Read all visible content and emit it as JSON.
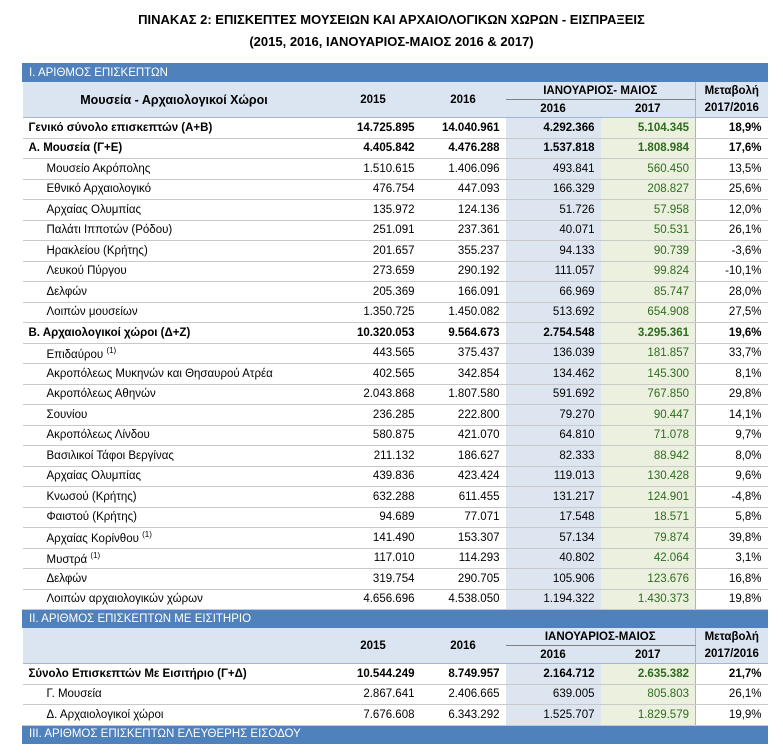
{
  "title": "ΠΙΝΑΚΑΣ 2: ΕΠΙΣΚΕΠΤΕΣ ΜΟΥΣΕΙΩΝ ΚΑΙ ΑΡΧΑΙΟΛΟΓΙΚΩΝ ΧΩΡΩΝ - ΕΙΣΠΡΑΞΕΙΣ",
  "subtitle": "(2015, 2016, ΙΑΝΟΥΑΡΙΟΣ-ΜΑΙΟΣ 2016 & 2017)",
  "sections": [
    {
      "heading": "Ι. ΑΡΙΘΜΟΣ  ΕΠΙΣΚΕΠΤΩΝ",
      "columns": {
        "name": "Μουσεία - Αρχαιολογικοί Χώροι",
        "y2015": "2015",
        "y2016": "2016",
        "period": "ΙΑΝΟΥΑΡΙΟΣ- ΜΑΙΟΣ",
        "p2016": "2016",
        "p2017": "2017",
        "change": "Μεταβολή 2017/2016"
      },
      "rows": [
        {
          "label": "Γενικό  σύνολο επισκεπτών (Α+Β)",
          "cells": [
            "14.725.895",
            "14.040.961",
            "4.292.366",
            "5.104.345",
            "18,9%"
          ],
          "bold": true
        },
        {
          "label": "Α. Μουσεία (Γ+Ε)",
          "cells": [
            "4.405.842",
            "4.476.288",
            "1.537.818",
            "1.808.984",
            "17,6%"
          ],
          "bold": true
        },
        {
          "label": "Μουσείο Ακρόπολης",
          "cells": [
            "1.510.615",
            "1.406.096",
            "493.841",
            "560.450",
            "13,5%"
          ]
        },
        {
          "label": "Εθνικό Αρχαιολογικό",
          "cells": [
            "476.754",
            "447.093",
            "166.329",
            "208.827",
            "25,6%"
          ]
        },
        {
          "label": "Αρχαίας Ολυμπίας",
          "cells": [
            "135.972",
            "124.136",
            "51.726",
            "57.958",
            "12,0%"
          ]
        },
        {
          "label": "Παλάτι Ιπποτών (Ρόδου)",
          "cells": [
            "251.091",
            "237.361",
            "40.071",
            "50.531",
            "26,1%"
          ]
        },
        {
          "label": "Ηρακλείου (Κρήτης)",
          "cells": [
            "201.657",
            "355.237",
            "94.133",
            "90.739",
            "-3,6%"
          ]
        },
        {
          "label": "Λευκού Πύργου",
          "cells": [
            "273.659",
            "290.192",
            "111.057",
            "99.824",
            "-10,1%"
          ]
        },
        {
          "label": "Δελφών",
          "cells": [
            "205.369",
            "166.091",
            "66.969",
            "85.747",
            "28,0%"
          ]
        },
        {
          "label": "Λοιπών μουσείων",
          "cells": [
            "1.350.725",
            "1.450.082",
            "513.692",
            "654.908",
            "27,5%"
          ]
        },
        {
          "label": "Β. Αρχαιολογικοί χώροι (Δ+Ζ)",
          "cells": [
            "10.320.053",
            "9.564.673",
            "2.754.548",
            "3.295.361",
            "19,6%"
          ],
          "bold": true
        },
        {
          "label": "Επιδαύρου",
          "note": "(1)",
          "cells": [
            "443.565",
            "375.437",
            "136.039",
            "181.857",
            "33,7%"
          ]
        },
        {
          "label": "Ακροπόλεως Μυκηνών και Θησαυρού Ατρέα",
          "cells": [
            "402.565",
            "342.854",
            "134.462",
            "145.300",
            "8,1%"
          ]
        },
        {
          "label": "Ακροπόλεως Αθηνών",
          "cells": [
            "2.043.868",
            "1.807.580",
            "591.692",
            "767.850",
            "29,8%"
          ]
        },
        {
          "label": "Σουνίου",
          "cells": [
            "236.285",
            "222.800",
            "79.270",
            "90.447",
            "14,1%"
          ]
        },
        {
          "label": "Ακροπόλεως Λίνδου",
          "cells": [
            "580.875",
            "421.070",
            "64.810",
            "71.078",
            "9,7%"
          ]
        },
        {
          "label": "Βασιλικοί Τάφοι Βεργίνας",
          "cells": [
            "211.132",
            "186.627",
            "82.333",
            "88.942",
            "8,0%"
          ]
        },
        {
          "label": "Αρχαίας Ολυμπίας",
          "cells": [
            "439.836",
            "423.424",
            "119.013",
            "130.428",
            "9,6%"
          ]
        },
        {
          "label": "Κνωσού (Κρήτης)",
          "cells": [
            "632.288",
            "611.455",
            "131.217",
            "124.901",
            "-4,8%"
          ]
        },
        {
          "label": "Φαιστού (Κρήτης)",
          "cells": [
            "94.689",
            "77.071",
            "17.548",
            "18.571",
            "5,8%"
          ]
        },
        {
          "label": "Αρχαίας Κορίνθου",
          "note": "(1)",
          "cells": [
            "141.490",
            "153.307",
            "57.134",
            "79.874",
            "39,8%"
          ]
        },
        {
          "label": "Μυστρά",
          "note": "(1)",
          "cells": [
            "117.010",
            "114.293",
            "40.802",
            "42.064",
            "3,1%"
          ]
        },
        {
          "label": "Δελφών",
          "cells": [
            "319.754",
            "290.705",
            "105.906",
            "123.676",
            "16,8%"
          ]
        },
        {
          "label": "Λοιπών αρχαιολογικών χώρων",
          "cells": [
            "4.656.696",
            "4.538.050",
            "1.194.322",
            "1.430.373",
            "19,8%"
          ]
        }
      ]
    },
    {
      "heading": "ΙΙ. ΑΡΙΘΜΟΣ  ΕΠΙΣΚΕΠΤΩΝ  ΜΕ ΕΙΣΙΤΗΡΙΟ",
      "columns": {
        "y2015": "2015",
        "y2016": "2016",
        "period": "ΙΑΝΟΥΑΡΙΟΣ-ΜΑΙΟΣ",
        "p2016": "2016",
        "p2017": "2017",
        "change": "Μεταβολή 2017/2016"
      },
      "rows": [
        {
          "label": "Σύνολο Επισκεπτών Με Εισιτήριο (Γ+Δ)",
          "cells": [
            "10.544.249",
            "8.749.957",
            "2.164.712",
            "2.635.382",
            "21,7%"
          ],
          "bold": true
        },
        {
          "label": "Γ. Μουσεία",
          "cells": [
            "2.867.641",
            "2.406.665",
            "639.005",
            "805.803",
            "26,1%"
          ]
        },
        {
          "label": "Δ. Αρχαιολογικοί χώροι",
          "cells": [
            "7.676.608",
            "6.343.292",
            "1.525.707",
            "1.829.579",
            "19,9%"
          ]
        }
      ]
    },
    {
      "heading": "ΙΙΙ. ΑΡΙΘΜΟΣ  ΕΠΙΣΚΕΠΤΩΝ ΕΛΕΥΘΕΡΗΣ ΕΙΣΟΔΟΥ"
    }
  ]
}
